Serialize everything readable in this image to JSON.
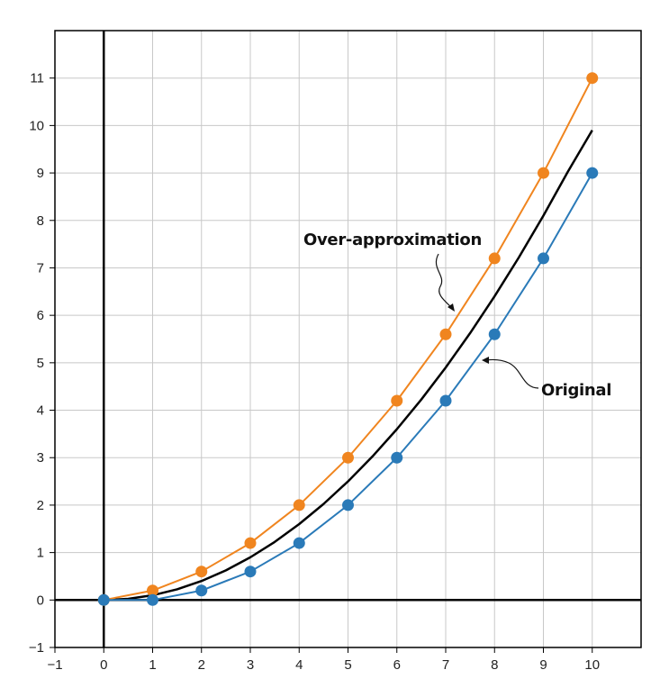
{
  "chart_data": {
    "type": "line",
    "title": "",
    "xlabel": "",
    "ylabel": "",
    "xlim": [
      -1,
      11
    ],
    "ylim": [
      -1,
      12
    ],
    "x_ticks": [
      -1,
      0,
      1,
      2,
      3,
      4,
      5,
      6,
      7,
      8,
      9,
      10
    ],
    "y_ticks": [
      -1,
      0,
      1,
      2,
      3,
      4,
      5,
      6,
      7,
      8,
      9,
      10,
      11
    ],
    "x_tick_labels": [
      "−1",
      "0",
      "1",
      "2",
      "3",
      "4",
      "5",
      "6",
      "7",
      "8",
      "9",
      "10"
    ],
    "y_tick_labels": [
      "−1",
      "0",
      "1",
      "2",
      "3",
      "4",
      "5",
      "6",
      "7",
      "8",
      "9",
      "10",
      "11"
    ],
    "grid": true,
    "series": [
      {
        "name": "Over-approximation",
        "color": "#f0851f",
        "marker": "circle",
        "x": [
          0,
          1,
          2,
          3,
          4,
          5,
          6,
          7,
          8,
          9,
          10
        ],
        "values": [
          0,
          0.2,
          0.6,
          1.2,
          2.0,
          3.0,
          4.2,
          5.6,
          7.2,
          9.0,
          11.0
        ]
      },
      {
        "name": "Original",
        "color": "#000000",
        "marker": "none",
        "x": [
          0,
          0.5,
          1,
          1.5,
          2,
          2.5,
          3,
          3.5,
          4,
          4.5,
          5,
          5.5,
          6,
          6.5,
          7,
          7.5,
          8,
          8.5,
          9,
          9.5,
          10
        ],
        "values": [
          0,
          0.025,
          0.1,
          0.225,
          0.4,
          0.625,
          0.9,
          1.225,
          1.6,
          2.025,
          2.5,
          3.025,
          3.6,
          4.225,
          4.9,
          5.625,
          6.4,
          7.225,
          8.1,
          9.025,
          9.9
        ]
      },
      {
        "name": "",
        "color": "#2a7ab8",
        "marker": "circle",
        "x": [
          0,
          1,
          2,
          3,
          4,
          5,
          6,
          7,
          8,
          9,
          10
        ],
        "values": [
          0,
          0,
          0.2,
          0.6,
          1.2,
          2.0,
          3.0,
          4.2,
          5.6,
          7.2,
          9.0
        ]
      }
    ],
    "annotations": [
      {
        "text": "Over-approximation",
        "points_to_series": "Over-approximation",
        "at": [
          7,
          5.6
        ]
      },
      {
        "text": "Original",
        "points_to_series": "Original",
        "at": [
          7.8,
          5.15
        ]
      }
    ]
  }
}
